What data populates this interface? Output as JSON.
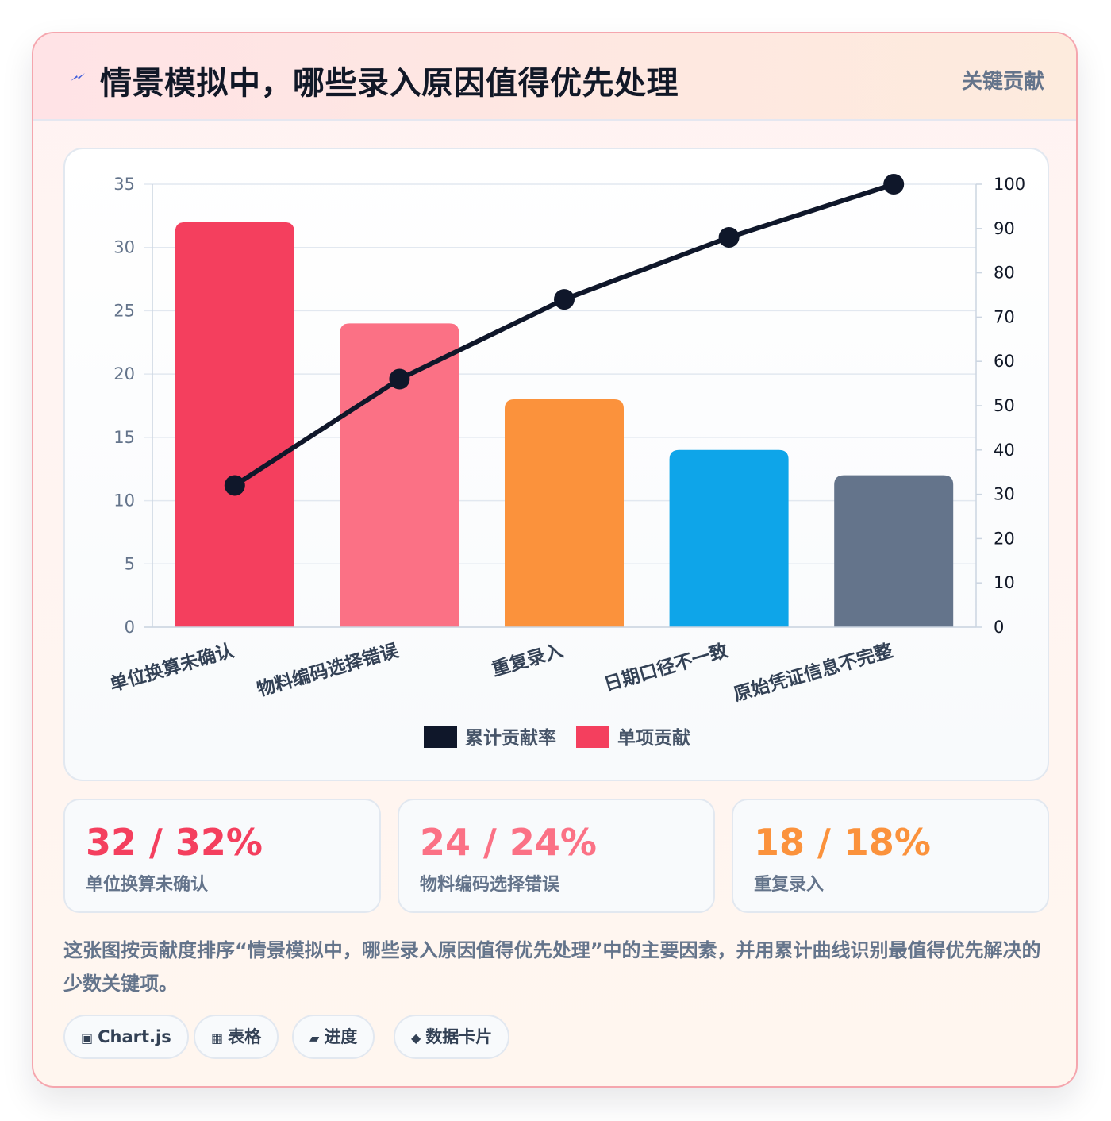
{
  "header": {
    "icon": "lightning-icon",
    "title": "情景模拟中，哪些录入原因值得优先处理",
    "badge": "关键贡献"
  },
  "chart_data": {
    "type": "bar",
    "categories": [
      "单位换算未确认",
      "物料编码选择错误",
      "重复录入",
      "日期口径不一致",
      "原始凭证信息不完整"
    ],
    "series": [
      {
        "name": "单项贡献",
        "type": "bar",
        "axis": "left",
        "values": [
          32,
          24,
          18,
          14,
          12
        ],
        "colors": [
          "#f43f5e",
          "#fb7185",
          "#fb923c",
          "#0ea5e9",
          "#64748b"
        ]
      },
      {
        "name": "累计贡献率",
        "type": "line",
        "axis": "right",
        "values": [
          32,
          56,
          74,
          88,
          100
        ],
        "color": "#0f172a"
      }
    ],
    "left_axis": {
      "ylim": [
        0,
        35
      ],
      "ticks": [
        "0",
        "5",
        "10",
        "15",
        "20",
        "25",
        "30",
        "35"
      ]
    },
    "right_axis": {
      "ylim": [
        0,
        100
      ],
      "ticks": [
        "0",
        "10",
        "20",
        "30",
        "40",
        "50",
        "60",
        "70",
        "80",
        "90",
        "100"
      ]
    },
    "legend": {
      "position": "bottom",
      "items": [
        {
          "label": "累计贡献率",
          "color": "#0f172a"
        },
        {
          "label": "单项贡献",
          "color": "#f43f5e"
        }
      ]
    },
    "grid": true
  },
  "stats": [
    {
      "value": "32 / 32%",
      "label": "单位换算未确认",
      "color": "#f43f5e"
    },
    {
      "value": "24 / 24%",
      "label": "物料编码选择错误",
      "color": "#fb7185"
    },
    {
      "value": "18 / 18%",
      "label": "重复录入",
      "color": "#fb923c"
    }
  ],
  "description": "这张图按贡献度排序“情景模拟中，哪些录入原因值得优先处理”中的主要因素，并用累计曲线识别最值得优先解决的少数关键项。",
  "tags": [
    {
      "icon": "chart-icon",
      "glyph": "▣",
      "label": "Chart.js"
    },
    {
      "icon": "table-icon",
      "glyph": "▦",
      "label": "表格"
    },
    {
      "icon": "progress-icon",
      "glyph": "▰",
      "label": "进度"
    },
    {
      "icon": "card-icon",
      "glyph": "◆",
      "label": "数据卡片"
    }
  ]
}
